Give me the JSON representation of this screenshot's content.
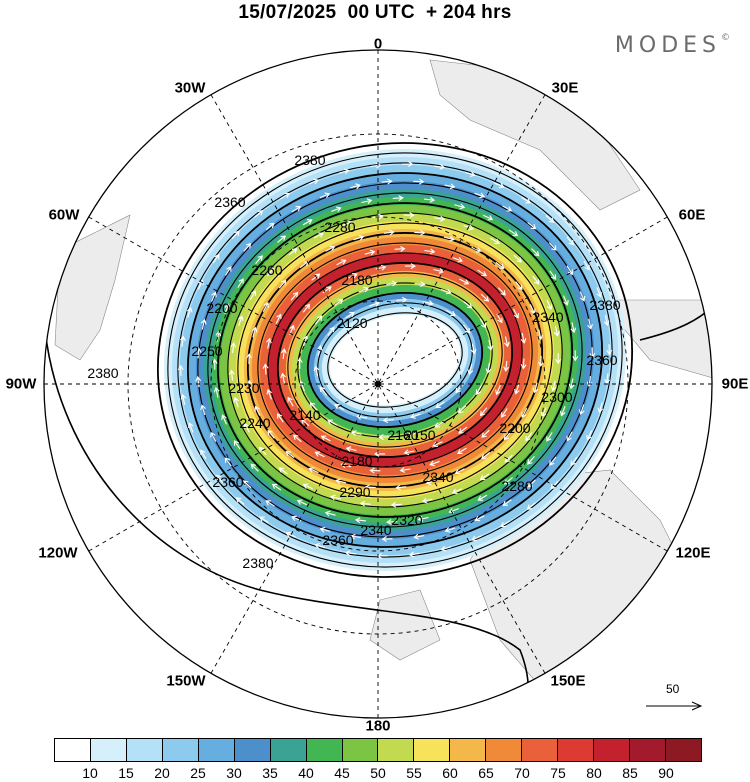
{
  "header": {
    "date": "15/07/2025",
    "time": "00 UTC",
    "lead": "+ 204 hrs"
  },
  "brand": {
    "name": "MODES",
    "mark": "©"
  },
  "longitude_labels": [
    "0",
    "30E",
    "60E",
    "90E",
    "120E",
    "150E",
    "180",
    "150W",
    "120W",
    "90W",
    "60W",
    "30W"
  ],
  "contours": [
    {
      "value": "2120"
    },
    {
      "value": "2140"
    },
    {
      "value": "2150"
    },
    {
      "value": "2160"
    },
    {
      "value": "2180"
    },
    {
      "value": "2180"
    },
    {
      "value": "2200"
    },
    {
      "value": "2200"
    },
    {
      "value": "2230"
    },
    {
      "value": "2260"
    },
    {
      "value": "2280"
    },
    {
      "value": "2280"
    },
    {
      "value": "2290"
    },
    {
      "value": "2300"
    },
    {
      "value": "2320"
    },
    {
      "value": "2340"
    },
    {
      "value": "2340"
    },
    {
      "value": "2340"
    },
    {
      "value": "2360"
    },
    {
      "value": "2360"
    },
    {
      "value": "2360"
    },
    {
      "value": "2360"
    },
    {
      "value": "2380"
    },
    {
      "value": "2380"
    },
    {
      "value": "2380"
    },
    {
      "value": "2380"
    },
    {
      "value": "2240"
    },
    {
      "value": "2250"
    }
  ],
  "vector_reference": {
    "value": "50"
  },
  "colorbar": {
    "colors": [
      "#ffffff",
      "#d5f0fb",
      "#b4e1f7",
      "#8ccaee",
      "#66ade0",
      "#4d8fcb",
      "#3aa394",
      "#42b653",
      "#7cc444",
      "#c1da4f",
      "#f7e25c",
      "#f4b84a",
      "#f08a38",
      "#e9603a",
      "#dc3a33",
      "#c4212f",
      "#a31a2c",
      "#8d1a22"
    ],
    "ticks": [
      "10",
      "15",
      "20",
      "25",
      "30",
      "35",
      "40",
      "45",
      "50",
      "55",
      "60",
      "65",
      "70",
      "75",
      "80",
      "85",
      "90"
    ]
  }
}
